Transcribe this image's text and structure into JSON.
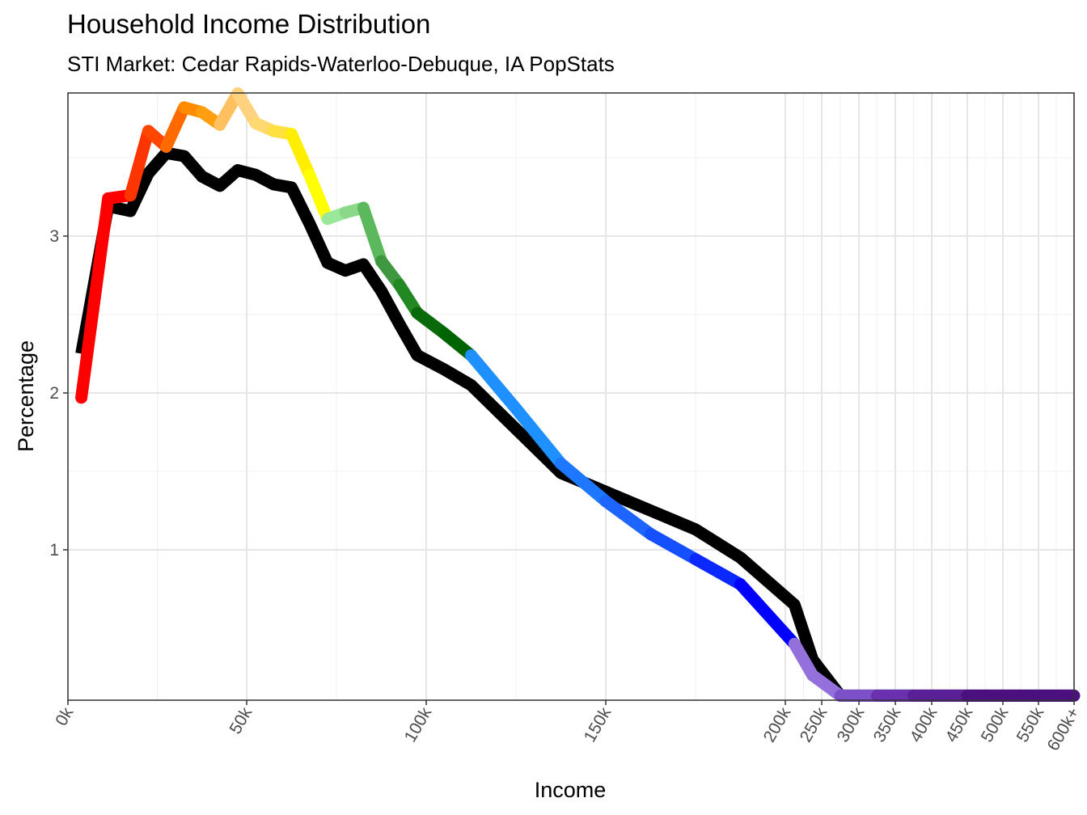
{
  "chart_data": {
    "type": "line",
    "title": "Household Income Distribution",
    "subtitle": "STI Market: Cedar Rapids-Waterloo-Debuque, IA PopStats",
    "xlabel": "Income",
    "ylabel": "Percentage",
    "x_scale": "piecewise: linear 0k-200k, compressed 200k-600k+",
    "x_breaks": [
      0,
      50,
      100,
      150,
      200,
      250,
      300,
      350,
      400,
      450,
      500,
      550,
      600
    ],
    "x_tick_labels": [
      "0k",
      "50k",
      "100k",
      "150k",
      "200k",
      "250k",
      "300k",
      "350k",
      "400k",
      "450k",
      "500k",
      "550k",
      "600k+"
    ],
    "y_breaks": [
      1,
      2,
      3
    ],
    "y_tick_labels": [
      "1",
      "2",
      "3"
    ],
    "ylim": [
      0.07,
      3.9
    ],
    "grid": true,
    "series": [
      {
        "color": "#000000",
        "x": [
          3.75,
          11.25,
          17.5,
          22.5,
          27.5,
          32.5,
          37.5,
          42.5,
          47.5,
          52.5,
          57.5,
          62.5,
          67.5,
          72.5,
          77.5,
          82.5,
          87.5,
          92.5,
          97.5,
          105,
          112.5,
          125,
          137.5,
          150,
          162.5,
          175,
          187.5,
          212.5,
          237.5,
          275,
          325,
          375,
          450,
          600
        ],
        "y": [
          2.25,
          3.19,
          3.16,
          3.4,
          3.53,
          3.51,
          3.38,
          3.32,
          3.42,
          3.39,
          3.33,
          3.31,
          3.08,
          2.83,
          2.78,
          2.82,
          2.65,
          2.44,
          2.24,
          2.15,
          2.05,
          1.77,
          1.49,
          1.37,
          1.25,
          1.13,
          0.95,
          0.65,
          0.3,
          0.07,
          0.07,
          0.07,
          0.07,
          0.07
        ]
      }
    ],
    "colored_series": {
      "x": [
        3.75,
        11.25,
        17.5,
        22.5,
        27.5,
        32.5,
        37.5,
        42.5,
        47.5,
        52.5,
        57.5,
        62.5,
        67.5,
        72.5,
        77.5,
        82.5,
        87.5,
        92.5,
        97.5,
        105,
        112.5,
        125,
        137.5,
        150,
        162.5,
        175,
        187.5,
        212.5,
        237.5,
        275,
        325,
        375,
        450,
        600
      ],
      "y": [
        1.97,
        3.24,
        3.26,
        3.67,
        3.57,
        3.82,
        3.79,
        3.71,
        3.91,
        3.72,
        3.67,
        3.65,
        3.39,
        3.11,
        3.15,
        3.18,
        2.84,
        2.69,
        2.51,
        2.38,
        2.24,
        1.9,
        1.55,
        1.31,
        1.1,
        0.94,
        0.78,
        0.4,
        0.2,
        0.07,
        0.07,
        0.07,
        0.07,
        0.07
      ],
      "segment_colors": [
        "#ff0000",
        "#ff0000",
        "#ff3500",
        "#ff4500",
        "#ff6a00",
        "#ff8c00",
        "#ff9f10",
        "#ffc060",
        "#ffd27f",
        "#ffd870",
        "#ffe040",
        "#ffee00",
        "#ffff00",
        "#9ae89a",
        "#8bd88b",
        "#5cb85c",
        "#3f973f",
        "#228822",
        "#0a6a0a",
        "#006400",
        "#1e90ff",
        "#1e90ff",
        "#1e78ff",
        "#1e64ff",
        "#1550ff",
        "#0a28ff",
        "#0000ff",
        "#9370db",
        "#9370db",
        "#7b50c8",
        "#6a30b0",
        "#5a2098",
        "#4b1080"
      ]
    }
  }
}
